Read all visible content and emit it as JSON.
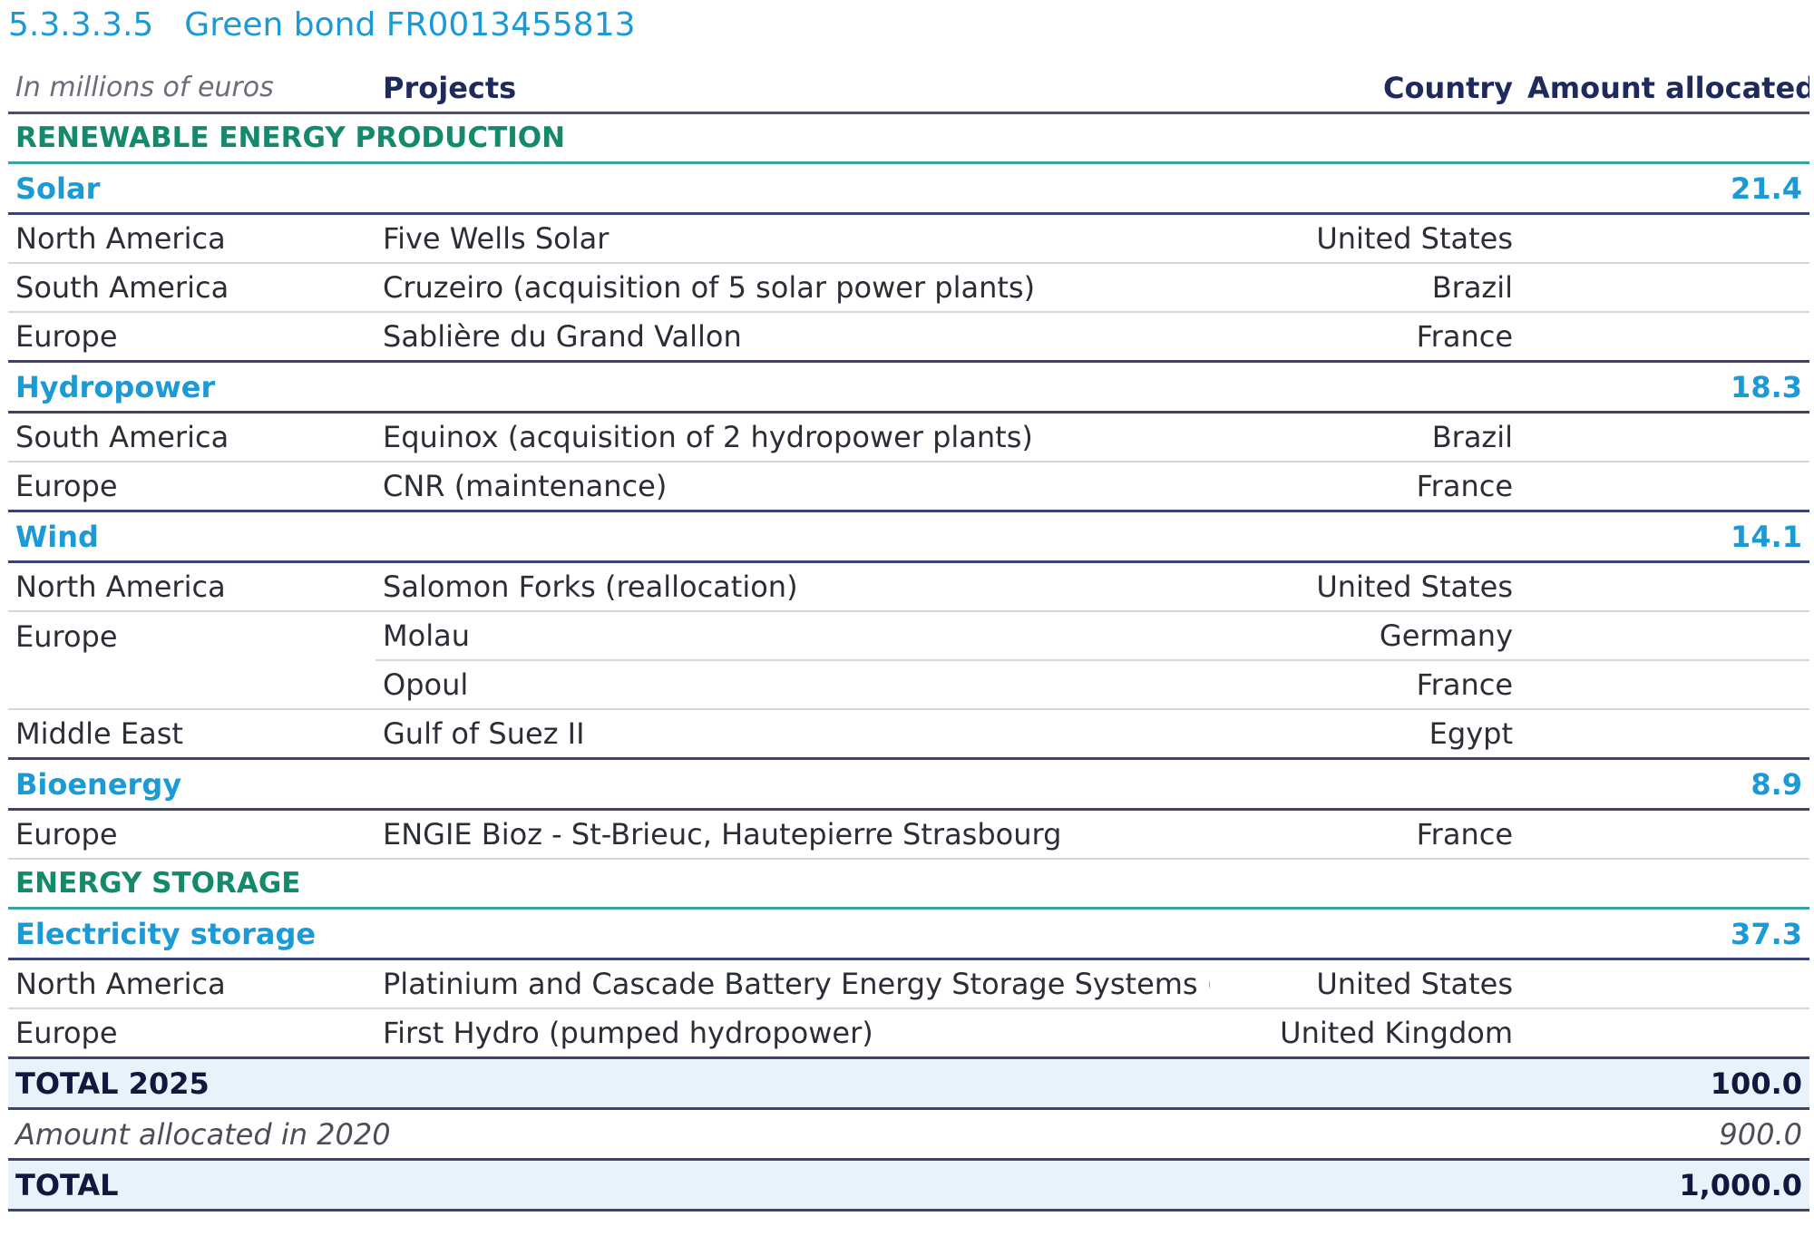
{
  "heading": {
    "number": "5.3.3.3.5",
    "title": "Green bond FR0013455813"
  },
  "table": {
    "units_label": "In millions of euros",
    "columns": {
      "projects": "Projects",
      "country": "Country",
      "amount": "Amount allocated"
    },
    "sections": [
      {
        "label": "RENEWABLE ENERGY PRODUCTION",
        "categories": [
          {
            "label": "Solar",
            "amount": "21.4",
            "rows": [
              {
                "region": "North America",
                "project": "Five Wells Solar",
                "country": "United States"
              },
              {
                "region": "South America",
                "project": "Cruzeiro (acquisition of 5 solar power plants)",
                "country": "Brazil"
              },
              {
                "region": "Europe",
                "project": "Sablière du Grand Vallon",
                "country": "France"
              }
            ]
          },
          {
            "label": "Hydropower",
            "amount": "18.3",
            "rows": [
              {
                "region": "South America",
                "project": "Equinox (acquisition of 2 hydropower plants)",
                "country": "Brazil"
              },
              {
                "region": "Europe",
                "project": "CNR (maintenance)",
                "country": "France"
              }
            ]
          },
          {
            "label": "Wind",
            "amount": "14.1",
            "rows": [
              {
                "region": "North America",
                "project": "Salomon Forks (reallocation)",
                "country": "United States"
              },
              {
                "region": "Europe",
                "project": "Molau",
                "country": "Germany"
              },
              {
                "region": "",
                "project": "Opoul",
                "country": "France"
              },
              {
                "region": "Middle East",
                "project": "Gulf of Suez II",
                "country": "Egypt"
              }
            ]
          },
          {
            "label": "Bioenergy",
            "amount": "8.9",
            "rows": [
              {
                "region": "Europe",
                "project": "ENGIE Bioz - St-Brieuc, Hautepierre Strasbourg",
                "country": "France"
              }
            ]
          }
        ]
      },
      {
        "label": "ENERGY STORAGE",
        "categories": [
          {
            "label": "Electricity storage",
            "amount": "37.3",
            "rows": [
              {
                "region": "North America",
                "project": "Platinium and Cascade Battery Energy Storage Systems (BESS)",
                "country": "United States"
              },
              {
                "region": "Europe",
                "project": "First Hydro (pumped hydropower)",
                "country": "United Kingdom"
              }
            ]
          }
        ]
      }
    ],
    "total_2025": {
      "label": "TOTAL 2025",
      "amount": "100.0"
    },
    "prior_allocation": {
      "label": "Amount allocated in 2020",
      "amount": "900.0"
    },
    "grand_total": {
      "label": "TOTAL",
      "amount": "1,000.0"
    }
  }
}
